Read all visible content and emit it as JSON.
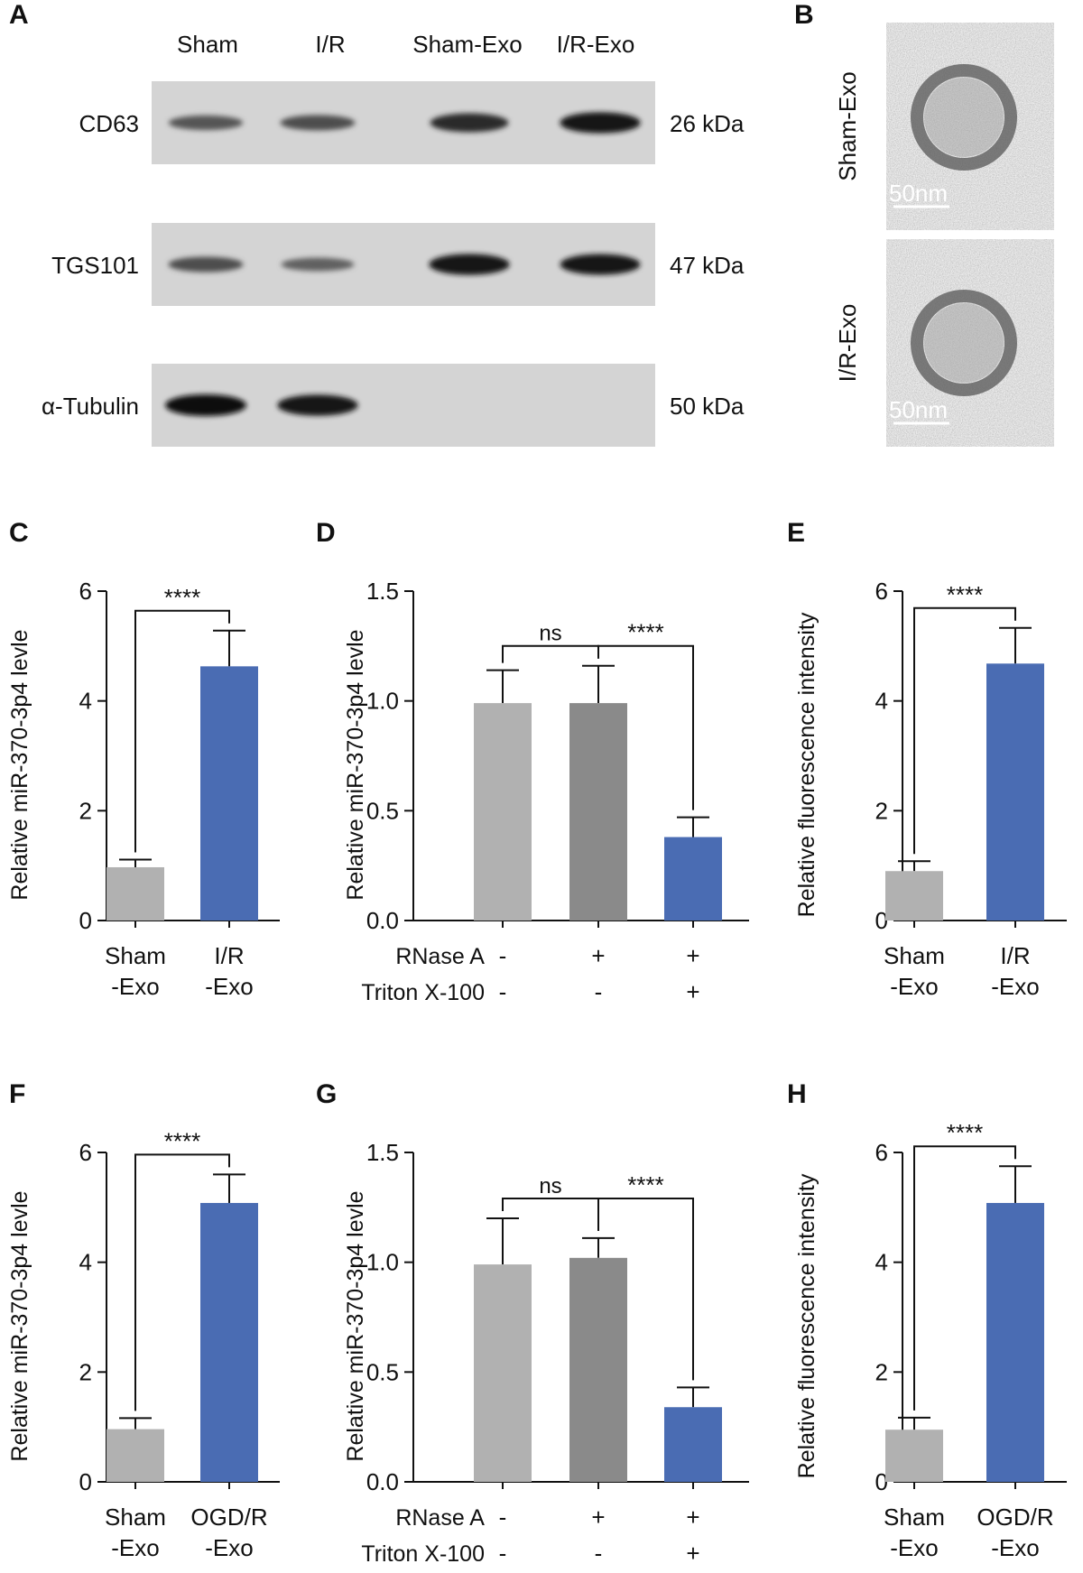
{
  "panels": {
    "A": "A",
    "B": "B",
    "C": "C",
    "D": "D",
    "E": "E",
    "F": "F",
    "G": "G",
    "H": "H"
  },
  "blot": {
    "lanes": [
      "Sham",
      "I/R",
      "Sham-Exo",
      "I/R-Exo"
    ],
    "rows": [
      {
        "protein": "CD63",
        "size": "26 kDa",
        "intensity": [
          0.45,
          0.5,
          0.78,
          0.95
        ]
      },
      {
        "protein": "TGS101",
        "size": "47 kDa",
        "intensity": [
          0.5,
          0.35,
          0.95,
          0.92
        ]
      },
      {
        "protein": "α-Tubulin",
        "size": "50 kDa",
        "intensity": [
          1.0,
          0.95,
          0,
          0
        ]
      }
    ]
  },
  "tem": {
    "images": [
      {
        "label": "Sham-Exo",
        "scale": "50nm"
      },
      {
        "label": "I/R-Exo",
        "scale": "50nm"
      }
    ]
  },
  "colors": {
    "light_gray": "#b1b1b1",
    "dark_gray": "#8a8a8a",
    "blue": "#4a6cb3",
    "axis": "#111111"
  },
  "chart_data": [
    {
      "id": "C",
      "type": "bar",
      "ylabel": "Relative miR-370-3p4 levle",
      "ylim": [
        0,
        6
      ],
      "ticks": [
        "0",
        "2",
        "4",
        "6"
      ],
      "tickvals": [
        0,
        2,
        4,
        6
      ],
      "categories": [
        [
          "Sham",
          "-Exo"
        ],
        [
          "I/R",
          "-Exo"
        ]
      ],
      "values": [
        0.97,
        4.63
      ],
      "errors": [
        0.14,
        0.65
      ],
      "colors": [
        "light_gray",
        "blue"
      ],
      "comparisons": [
        {
          "from": 0,
          "to": 1,
          "label": "****"
        }
      ]
    },
    {
      "id": "D",
      "type": "bar",
      "ylabel": "Relative miR-370-3p4 levle",
      "ylim": [
        0,
        1.5
      ],
      "ticks": [
        "0.0",
        "0.5",
        "1.0",
        "1.5"
      ],
      "tickvals": [
        0,
        0.5,
        1.0,
        1.5
      ],
      "condition_rows": [
        {
          "name": "RNase A",
          "values": [
            "-",
            "+",
            "+"
          ]
        },
        {
          "name": "Triton X-100",
          "values": [
            "-",
            "-",
            "+"
          ]
        }
      ],
      "values": [
        0.99,
        0.99,
        0.38
      ],
      "errors": [
        0.15,
        0.17,
        0.09
      ],
      "colors": [
        "light_gray",
        "dark_gray",
        "blue"
      ],
      "comparisons": [
        {
          "from": 0,
          "to": 1,
          "label": "ns"
        },
        {
          "from": 1,
          "to": 2,
          "label": "****"
        }
      ]
    },
    {
      "id": "E",
      "type": "bar",
      "ylabel": "Relative fluorescence intensity",
      "ylim": [
        0,
        6
      ],
      "ticks": [
        "0",
        "2",
        "4",
        "6"
      ],
      "tickvals": [
        0,
        2,
        4,
        6
      ],
      "categories": [
        [
          "Sham",
          "-Exo"
        ],
        [
          "I/R",
          "-Exo"
        ]
      ],
      "values": [
        0.9,
        4.68
      ],
      "errors": [
        0.18,
        0.65
      ],
      "colors": [
        "light_gray",
        "blue"
      ],
      "comparisons": [
        {
          "from": 0,
          "to": 1,
          "label": "****"
        }
      ]
    },
    {
      "id": "F",
      "type": "bar",
      "ylabel": "Relative miR-370-3p4 levle",
      "ylim": [
        0,
        6
      ],
      "ticks": [
        "0",
        "2",
        "4",
        "6"
      ],
      "tickvals": [
        0,
        2,
        4,
        6
      ],
      "categories": [
        [
          "Sham",
          "-Exo"
        ],
        [
          "OGD/R",
          "-Exo"
        ]
      ],
      "values": [
        0.96,
        5.08
      ],
      "errors": [
        0.2,
        0.52
      ],
      "colors": [
        "light_gray",
        "blue"
      ],
      "comparisons": [
        {
          "from": 0,
          "to": 1,
          "label": "****"
        }
      ]
    },
    {
      "id": "G",
      "type": "bar",
      "ylabel": "Relative miR-370-3p4 levle",
      "ylim": [
        0,
        1.5
      ],
      "ticks": [
        "0.0",
        "0.5",
        "1.0",
        "1.5"
      ],
      "tickvals": [
        0,
        0.5,
        1.0,
        1.5
      ],
      "condition_rows": [
        {
          "name": "RNase A",
          "values": [
            "-",
            "+",
            "+"
          ]
        },
        {
          "name": "Triton X-100",
          "values": [
            "-",
            "-",
            "+"
          ]
        }
      ],
      "values": [
        0.99,
        1.02,
        0.34
      ],
      "errors": [
        0.21,
        0.09,
        0.09
      ],
      "colors": [
        "light_gray",
        "dark_gray",
        "blue"
      ],
      "comparisons": [
        {
          "from": 0,
          "to": 1,
          "label": "ns"
        },
        {
          "from": 1,
          "to": 2,
          "label": "****"
        }
      ]
    },
    {
      "id": "H",
      "type": "bar",
      "ylabel": "Relative fluorescence intensity",
      "ylim": [
        0,
        6
      ],
      "ticks": [
        "0",
        "2",
        "4",
        "6"
      ],
      "tickvals": [
        0,
        2,
        4,
        6
      ],
      "categories": [
        [
          "Sham",
          "-Exo"
        ],
        [
          "OGD/R",
          "-Exo"
        ]
      ],
      "values": [
        0.95,
        5.08
      ],
      "errors": [
        0.22,
        0.67
      ],
      "colors": [
        "light_gray",
        "blue"
      ],
      "comparisons": [
        {
          "from": 0,
          "to": 1,
          "label": "****"
        }
      ]
    }
  ]
}
